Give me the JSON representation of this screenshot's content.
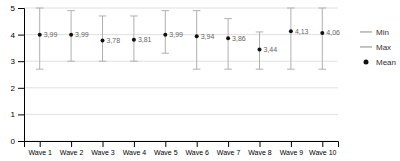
{
  "chart_data": {
    "type": "errorbar",
    "categories": [
      "Wave 1",
      "Wave 2",
      "Wave 3",
      "Wave 4",
      "Wave 5",
      "Wave 6",
      "Wave 7",
      "Wave 8",
      "Wave 9",
      "Wave 10"
    ],
    "series": [
      {
        "name": "Min",
        "color": "#b0b0b0",
        "line_style": "solid",
        "values": [
          2.7,
          3.0,
          3.0,
          3.0,
          3.3,
          2.7,
          2.7,
          2.7,
          2.7,
          2.7
        ]
      },
      {
        "name": "Max",
        "color": "#b0b0b0",
        "line_style": "solid",
        "values": [
          5.0,
          4.9,
          4.7,
          4.7,
          4.9,
          4.9,
          4.6,
          4.1,
          5.0,
          5.0
        ]
      },
      {
        "name": "Mean",
        "color": "#111111",
        "marker": "circle",
        "values": [
          3.99,
          3.99,
          3.78,
          3.81,
          3.99,
          3.94,
          3.86,
          3.44,
          4.13,
          4.06
        ],
        "value_labels": [
          "3,99",
          "3,99",
          "3,78",
          "3,81",
          "3,99",
          "3,94",
          "3,86",
          "3,44",
          "4,13",
          "4,06"
        ]
      }
    ],
    "data_labels": true,
    "ylim": [
      0,
      5
    ],
    "yticks": [
      0,
      1,
      2,
      3,
      4,
      5
    ],
    "grid": true,
    "legend": "right"
  }
}
